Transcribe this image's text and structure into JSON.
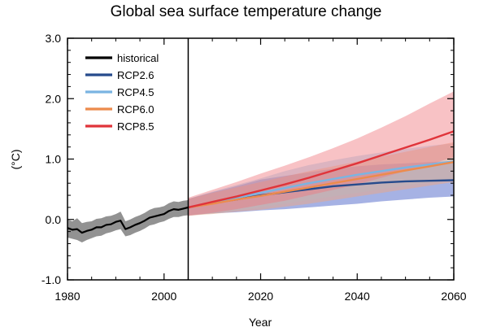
{
  "chart_data": {
    "type": "line",
    "title": "Global sea surface temperature change",
    "xlabel": "Year",
    "ylabel": "(°C)",
    "xlim": [
      1980,
      2060
    ],
    "ylim": [
      -1.0,
      3.0
    ],
    "x_ticks": [
      1980,
      2000,
      2020,
      2040,
      2060
    ],
    "x_tick_labels": [
      "1980",
      "2000",
      "2020",
      "2040",
      "2060"
    ],
    "y_ticks": [
      -1.0,
      0.0,
      1.0,
      2.0,
      3.0
    ],
    "y_tick_labels": [
      "-1.0",
      "0.0",
      "1.0",
      "2.0",
      "3.0"
    ],
    "grid": false,
    "legend_position": "top-left",
    "divider_year": 2005,
    "series": [
      {
        "name": "historical",
        "color": "#000000",
        "band_color": "#8c8c8c",
        "x": [
          1980,
          1981,
          1982,
          1983,
          1984,
          1985,
          1986,
          1987,
          1988,
          1989,
          1990,
          1991,
          1992,
          1993,
          1994,
          1995,
          1996,
          1997,
          1998,
          1999,
          2000,
          2001,
          2002,
          2003,
          2004,
          2005
        ],
        "mean": [
          -0.14,
          -0.17,
          -0.16,
          -0.22,
          -0.19,
          -0.17,
          -0.13,
          -0.13,
          -0.09,
          -0.08,
          -0.04,
          -0.02,
          -0.16,
          -0.13,
          -0.09,
          -0.06,
          -0.02,
          0.03,
          0.05,
          0.07,
          0.09,
          0.14,
          0.17,
          0.16,
          0.18,
          0.2
        ],
        "lower": [
          -0.3,
          -0.32,
          -0.34,
          -0.38,
          -0.34,
          -0.31,
          -0.28,
          -0.27,
          -0.23,
          -0.21,
          -0.18,
          -0.16,
          -0.28,
          -0.26,
          -0.22,
          -0.19,
          -0.15,
          -0.1,
          -0.08,
          -0.05,
          -0.03,
          0.01,
          0.04,
          0.04,
          0.06,
          0.07
        ],
        "upper": [
          0.0,
          -0.03,
          0.02,
          -0.06,
          -0.04,
          -0.03,
          0.01,
          0.02,
          0.05,
          0.06,
          0.09,
          0.13,
          -0.03,
          0.0,
          0.04,
          0.07,
          0.11,
          0.16,
          0.19,
          0.2,
          0.22,
          0.27,
          0.3,
          0.29,
          0.31,
          0.32
        ]
      },
      {
        "name": "RCP2.6",
        "color": "#264b8c",
        "band_color": "#3a55c4",
        "x": [
          2005,
          2010,
          2015,
          2020,
          2025,
          2030,
          2035,
          2040,
          2045,
          2050,
          2055,
          2060
        ],
        "mean": [
          0.2,
          0.27,
          0.33,
          0.4,
          0.45,
          0.5,
          0.55,
          0.58,
          0.61,
          0.63,
          0.64,
          0.65
        ],
        "lower": [
          0.07,
          0.1,
          0.12,
          0.15,
          0.17,
          0.2,
          0.23,
          0.26,
          0.3,
          0.33,
          0.36,
          0.38
        ],
        "upper": [
          0.34,
          0.45,
          0.55,
          0.66,
          0.72,
          0.78,
          0.84,
          0.88,
          0.91,
          0.93,
          0.95,
          0.97
        ]
      },
      {
        "name": "RCP4.5",
        "color": "#7ab4e2",
        "band_color": "#8ec6ec",
        "x": [
          2005,
          2010,
          2015,
          2020,
          2025,
          2030,
          2035,
          2040,
          2045,
          2050,
          2055,
          2060
        ],
        "mean": [
          0.2,
          0.28,
          0.36,
          0.44,
          0.52,
          0.6,
          0.67,
          0.74,
          0.8,
          0.86,
          0.91,
          0.96
        ],
        "lower": [
          0.06,
          0.1,
          0.15,
          0.2,
          0.26,
          0.32,
          0.38,
          0.44,
          0.5,
          0.56,
          0.61,
          0.66
        ],
        "upper": [
          0.34,
          0.46,
          0.57,
          0.68,
          0.8,
          0.9,
          0.98,
          1.05,
          1.11,
          1.17,
          1.22,
          1.26
        ]
      },
      {
        "name": "RCP6.0",
        "color": "#ec8b4c",
        "band_color": "#f3a47a",
        "x": [
          2005,
          2010,
          2015,
          2020,
          2025,
          2030,
          2035,
          2040,
          2045,
          2050,
          2055,
          2060
        ],
        "mean": [
          0.2,
          0.26,
          0.33,
          0.39,
          0.46,
          0.53,
          0.6,
          0.67,
          0.74,
          0.81,
          0.88,
          0.95
        ],
        "lower": [
          0.06,
          0.09,
          0.13,
          0.16,
          0.21,
          0.26,
          0.32,
          0.38,
          0.44,
          0.5,
          0.56,
          0.62
        ],
        "upper": [
          0.34,
          0.44,
          0.53,
          0.62,
          0.71,
          0.8,
          0.88,
          0.96,
          1.04,
          1.12,
          1.2,
          1.28
        ]
      },
      {
        "name": "RCP8.5",
        "color": "#e0343a",
        "band_color": "#f0787e",
        "x": [
          2005,
          2010,
          2015,
          2020,
          2025,
          2030,
          2035,
          2040,
          2045,
          2050,
          2055,
          2060
        ],
        "mean": [
          0.2,
          0.29,
          0.38,
          0.48,
          0.58,
          0.69,
          0.81,
          0.93,
          1.06,
          1.19,
          1.32,
          1.46
        ],
        "lower": [
          0.06,
          0.11,
          0.17,
          0.24,
          0.31,
          0.4,
          0.49,
          0.58,
          0.69,
          0.8,
          0.91,
          1.03
        ],
        "upper": [
          0.36,
          0.49,
          0.62,
          0.76,
          0.89,
          1.03,
          1.18,
          1.34,
          1.52,
          1.71,
          1.92,
          2.12
        ]
      }
    ]
  }
}
